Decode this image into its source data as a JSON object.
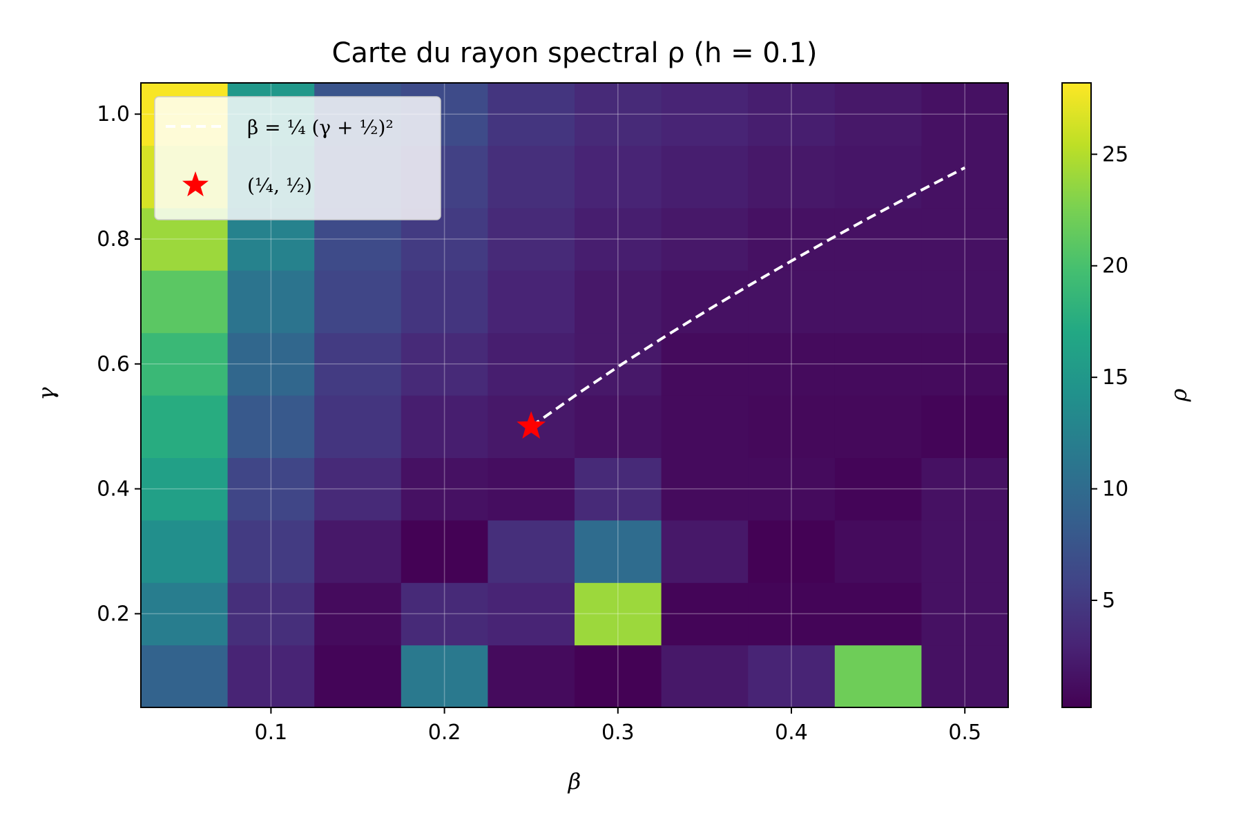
{
  "chart_data": {
    "type": "heatmap",
    "title": "Carte du rayon spectral ρ (h = 0.1)",
    "xlabel": "β",
    "ylabel": "γ",
    "colorbar_label": "ρ",
    "colormap": "viridis",
    "x_centers": [
      0.05,
      0.1,
      0.15,
      0.2,
      0.25,
      0.3,
      0.35,
      0.4,
      0.45,
      0.5
    ],
    "y_centers": [
      0.1,
      0.2,
      0.3,
      0.4,
      0.5,
      0.6,
      0.7,
      0.8,
      0.9,
      1.0
    ],
    "xlim": [
      0.025,
      0.525
    ],
    "ylim": [
      0.05,
      1.05
    ],
    "x_ticks": [
      "0.1",
      "0.2",
      "0.3",
      "0.4",
      "0.5"
    ],
    "x_tick_values": [
      0.1,
      0.2,
      0.3,
      0.4,
      0.5
    ],
    "y_ticks": [
      "0.2",
      "0.4",
      "0.6",
      "0.8",
      "1.0"
    ],
    "y_tick_values": [
      0.2,
      0.4,
      0.6,
      0.8,
      1.0
    ],
    "color_range": [
      0.2,
      28.2
    ],
    "colorbar_ticks": [
      "5",
      "10",
      "15",
      "20",
      "25"
    ],
    "colorbar_tick_values": [
      5,
      10,
      15,
      20,
      25
    ],
    "values": [
      [
        9.0,
        3.0,
        0.5,
        11.5,
        1.0,
        0.3,
        2.0,
        3.0,
        22.0,
        1.5
      ],
      [
        12.0,
        4.0,
        1.0,
        3.5,
        3.0,
        24.0,
        0.5,
        0.5,
        0.5,
        1.5
      ],
      [
        14.0,
        5.0,
        2.0,
        0.3,
        4.0,
        10.0,
        2.0,
        0.3,
        1.0,
        1.5
      ],
      [
        16.0,
        6.0,
        3.5,
        1.5,
        1.2,
        3.5,
        1.0,
        1.0,
        0.5,
        1.5
      ],
      [
        17.5,
        8.0,
        4.5,
        2.5,
        2.0,
        1.5,
        1.0,
        0.8,
        0.8,
        0.5
      ],
      [
        19.0,
        9.5,
        5.0,
        3.5,
        2.5,
        2.0,
        1.0,
        1.0,
        1.0,
        1.0
      ],
      [
        21.0,
        11.0,
        6.0,
        4.5,
        3.0,
        2.0,
        1.5,
        1.5,
        1.5,
        1.5
      ],
      [
        24.0,
        12.5,
        6.5,
        5.0,
        3.5,
        2.5,
        2.0,
        1.5,
        1.5,
        1.5
      ],
      [
        26.5,
        13.5,
        7.0,
        5.5,
        4.0,
        3.0,
        2.5,
        2.0,
        1.8,
        1.5
      ],
      [
        28.0,
        15.0,
        7.5,
        6.5,
        4.5,
        3.5,
        3.0,
        2.5,
        2.0,
        1.5
      ]
    ],
    "curve": {
      "name": "β = ¼ (γ + ½)²",
      "beta": [
        0.25,
        0.2775,
        0.3025,
        0.3275,
        0.3525,
        0.3775,
        0.4,
        0.4225,
        0.445,
        0.4725,
        0.5
      ],
      "gamma": [
        0.5,
        0.5535,
        0.6,
        0.6446,
        0.6874,
        0.7288,
        0.7649,
        0.8,
        0.8342,
        0.8748,
        0.9142
      ],
      "color": "#ffffff",
      "style": "dashed"
    },
    "marker": {
      "name": "(¼, ½)",
      "beta": 0.25,
      "gamma": 0.5,
      "color": "#ff0000",
      "shape": "star"
    },
    "grid": true,
    "legend_position": "top-left"
  }
}
